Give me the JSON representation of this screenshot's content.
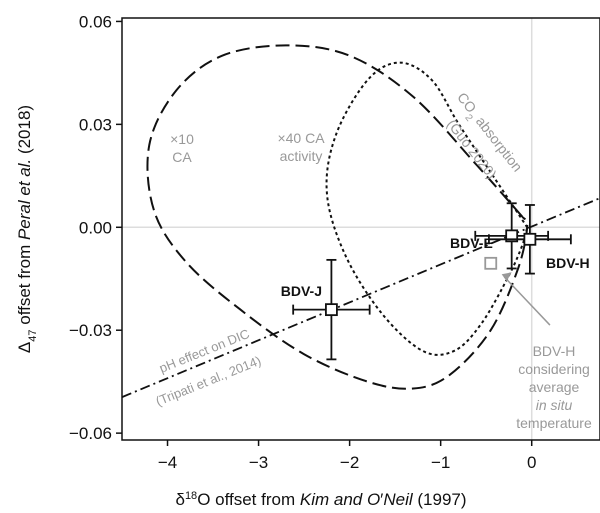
{
  "chart_data": {
    "type": "scatter",
    "xlabel_parts": [
      "δ",
      "18",
      "O offset from ",
      "Kim and O",
      "′",
      "Neil",
      " (1997)"
    ],
    "ylabel_parts": [
      "Δ",
      "47",
      " offset from ",
      "Peral et al.",
      " (2018)"
    ],
    "xlim": [
      -4.5,
      0.75
    ],
    "ylim": [
      -0.062,
      0.061
    ],
    "x_ticks": [
      -4,
      -3,
      -2,
      -1,
      0
    ],
    "x_tick_labels": [
      "−4",
      "−3",
      "−2",
      "−1",
      "0"
    ],
    "y_ticks": [
      0.06,
      0.03,
      0.0,
      -0.03,
      -0.06
    ],
    "y_tick_labels": [
      "0.06",
      "0.03",
      "0.00",
      "−0.03",
      "−0.06"
    ],
    "zero_lines": true,
    "points": [
      {
        "label": "BDV-J",
        "x": -2.2,
        "y": -0.024,
        "xerr": 0.42,
        "yerr": 0.0145
      },
      {
        "label": "BDV-E",
        "x": -0.22,
        "y": -0.0025,
        "xerr": 0.4,
        "yerr": 0.0095
      },
      {
        "label": "BDV-H",
        "x": -0.02,
        "y": -0.0035,
        "xerr": 0.45,
        "yerr": 0.01
      }
    ],
    "gray_point": {
      "x": -0.45,
      "y": -0.0105
    },
    "annotations": {
      "ca10": [
        "×10",
        "CA"
      ],
      "ca40": [
        "×40 CA",
        "activity"
      ],
      "co2_line1_a": "CO",
      "co2_line1_sub": "2",
      "co2_line1_b": " absorption",
      "co2_line2": "(Guo 2020)",
      "ph_line1": "pH effect on DIC",
      "ph_line2": "(Tripati et al., 2014)",
      "insitu": [
        "BDV-H",
        "considering",
        "average",
        "in situ",
        "temperature"
      ]
    },
    "curves": {
      "ca10_outline": [
        [
          -0.1,
          0.003
        ],
        [
          -0.6,
          0.018
        ],
        [
          -1.3,
          0.038
        ],
        [
          -2.0,
          0.05
        ],
        [
          -2.7,
          0.053
        ],
        [
          -3.4,
          0.05
        ],
        [
          -3.9,
          0.04
        ],
        [
          -4.2,
          0.024
        ],
        [
          -4.15,
          0.005
        ],
        [
          -3.8,
          -0.01
        ],
        [
          -3.2,
          -0.024
        ],
        [
          -2.5,
          -0.037
        ],
        [
          -1.8,
          -0.045
        ],
        [
          -1.3,
          -0.047
        ],
        [
          -0.9,
          -0.043
        ],
        [
          -0.45,
          -0.03
        ],
        [
          -0.15,
          -0.012
        ],
        [
          -0.05,
          0.0
        ],
        [
          -0.1,
          0.003
        ]
      ],
      "ca40_outline": [
        [
          -0.05,
          0.0
        ],
        [
          -0.4,
          0.014
        ],
        [
          -0.8,
          0.03
        ],
        [
          -1.1,
          0.043
        ],
        [
          -1.45,
          0.048
        ],
        [
          -1.8,
          0.043
        ],
        [
          -2.15,
          0.027
        ],
        [
          -2.25,
          0.01
        ],
        [
          -2.05,
          -0.008
        ],
        [
          -1.65,
          -0.025
        ],
        [
          -1.2,
          -0.036
        ],
        [
          -0.85,
          -0.036
        ],
        [
          -0.55,
          -0.028
        ],
        [
          -0.25,
          -0.014
        ],
        [
          -0.1,
          -0.005
        ],
        [
          -0.05,
          0.0
        ]
      ],
      "ph_line": [
        [
          -4.5,
          -0.0495
        ],
        [
          0.75,
          0.0085
        ]
      ]
    },
    "colors": {
      "annotation": "#999999",
      "axes": "#111111",
      "grid": "#dddddd"
    }
  }
}
